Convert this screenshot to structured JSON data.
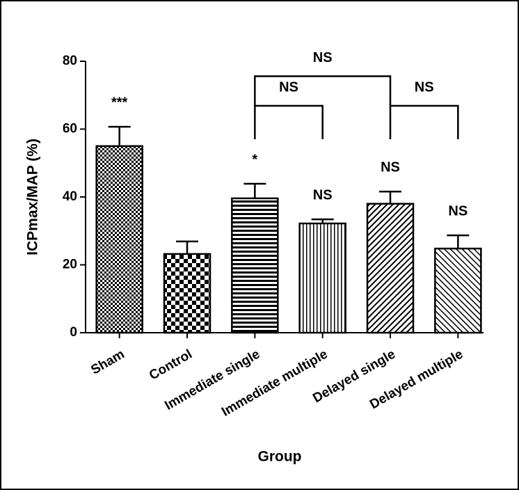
{
  "chart_data": {
    "type": "bar",
    "x_label": "Group",
    "y_label": "ICPmax/MAP (%)",
    "categories": [
      "Sham",
      "Control",
      "Immediate single",
      "Immediate multiple",
      "Delayed single",
      "Delayed multiple"
    ],
    "values": [
      55,
      23.2,
      39.6,
      32.2,
      38,
      24.8
    ],
    "errors": [
      5.7,
      3.7,
      4.3,
      1.2,
      3.6,
      3.9
    ],
    "annotations": [
      "***",
      null,
      "*",
      "NS",
      "NS",
      "NS"
    ],
    "patterns": [
      "fine-check",
      "coarse-check",
      "horizontal",
      "vertical",
      "diagonal-up",
      "diagonal-down"
    ],
    "comparisons": [
      {
        "from": "Immediate single",
        "to": "Delayed single",
        "label": "NS"
      },
      {
        "from": "Immediate single",
        "to": "Immediate multiple",
        "label": "NS"
      },
      {
        "from": "Delayed single",
        "to": "Delayed multiple",
        "label": "NS"
      }
    ],
    "ylim": [
      0,
      80
    ],
    "yticks": [
      0,
      20,
      40,
      60,
      80
    ],
    "grid": false
  }
}
